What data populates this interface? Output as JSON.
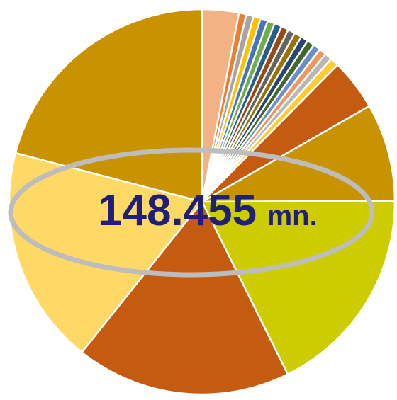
{
  "chart_data": {
    "type": "pie",
    "title": "",
    "center_label": {
      "value": "148.455",
      "unit": "mn."
    },
    "slices": [
      {
        "value": 3.0,
        "color": "#f2b283"
      },
      {
        "value": 0.6,
        "color": "#ed7d31"
      },
      {
        "value": 0.6,
        "color": "#a5a5a5"
      },
      {
        "value": 0.6,
        "color": "#ffc000"
      },
      {
        "value": 0.6,
        "color": "#4472c4"
      },
      {
        "value": 0.6,
        "color": "#70ad47"
      },
      {
        "value": 0.6,
        "color": "#255e91"
      },
      {
        "value": 0.6,
        "color": "#9e480e"
      },
      {
        "value": 0.6,
        "color": "#636363"
      },
      {
        "value": 0.6,
        "color": "#997300"
      },
      {
        "value": 0.6,
        "color": "#264478"
      },
      {
        "value": 0.6,
        "color": "#43682b"
      },
      {
        "value": 0.6,
        "color": "#698ed0"
      },
      {
        "value": 0.6,
        "color": "#f1975a"
      },
      {
        "value": 0.6,
        "color": "#b7b7b7"
      },
      {
        "value": 0.7,
        "color": "#ffcd33"
      },
      {
        "value": 4.2,
        "color": "#c55a11"
      },
      {
        "value": 8.0,
        "color": "#c99300"
      },
      {
        "value": 17.3,
        "color": "#cccc00"
      },
      {
        "value": 17.6,
        "color": "#c55a11"
      },
      {
        "value": 17.9,
        "color": "#ffd966"
      },
      {
        "value": 20.4,
        "color": "#c99300"
      }
    ]
  }
}
